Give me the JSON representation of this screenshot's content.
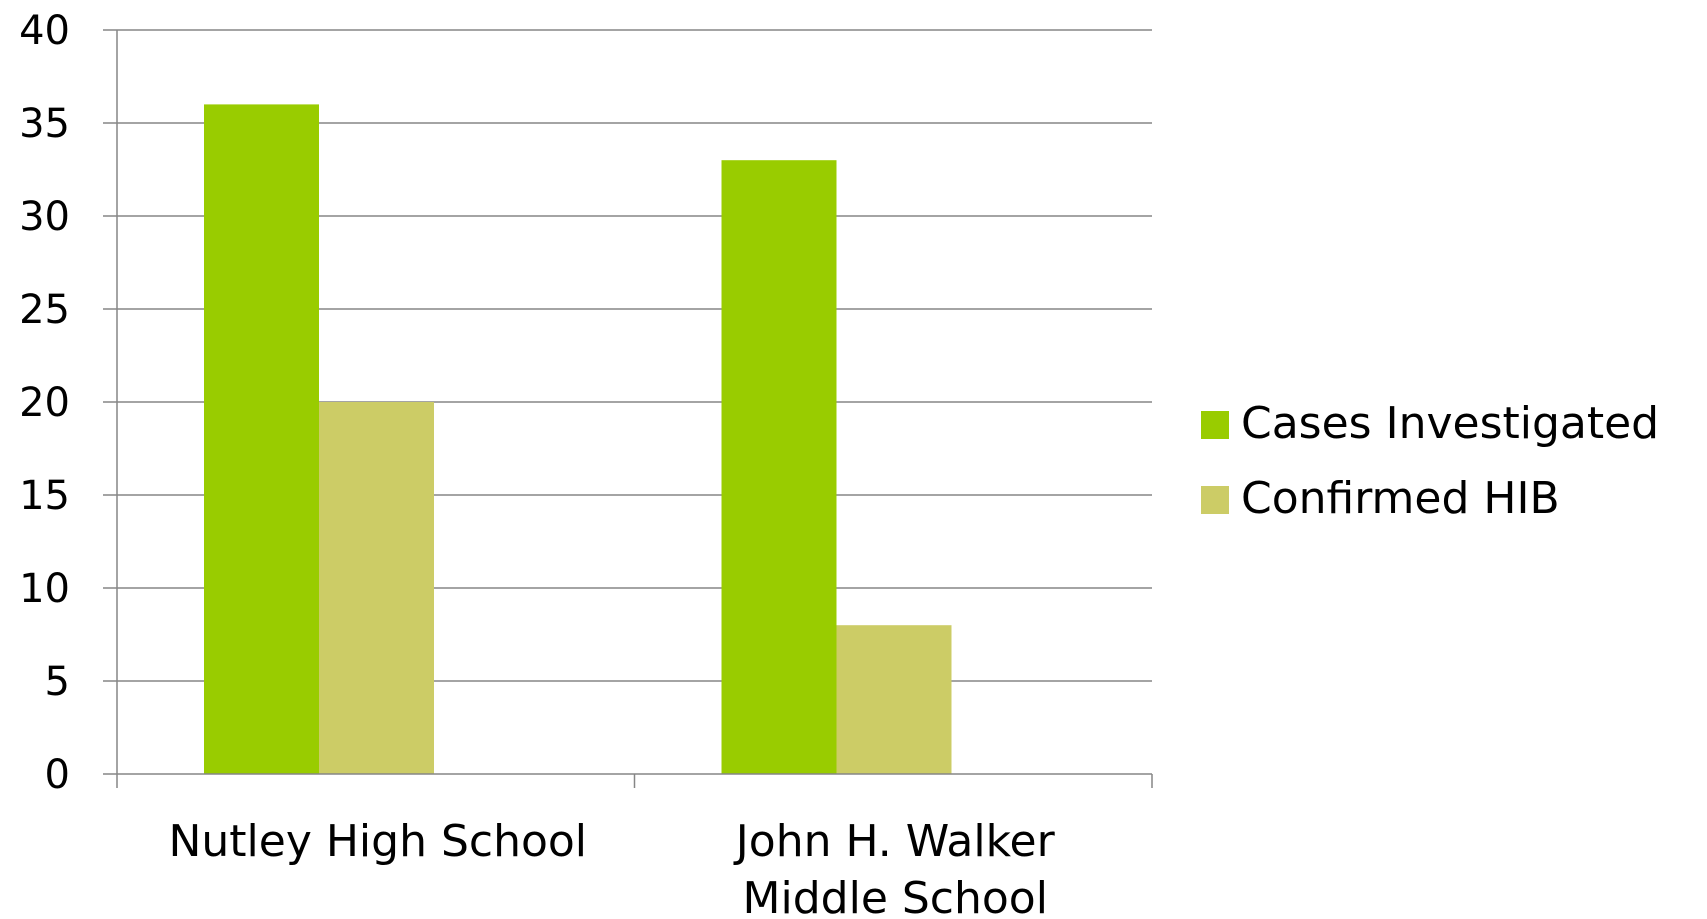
{
  "chart_data": {
    "type": "bar",
    "title": "",
    "xlabel": "",
    "ylabel": "",
    "categories": [
      [
        "Nutley High School"
      ],
      [
        "John H. Walker",
        "Middle School"
      ]
    ],
    "series": [
      {
        "name": "Cases Investigated",
        "values": [
          36,
          33
        ],
        "color": "#99CC00"
      },
      {
        "name": "Confirmed HIB",
        "values": [
          20,
          8
        ],
        "color": "#CCCC66"
      }
    ],
    "ylim": [
      0,
      40
    ],
    "yticks": [
      0,
      5,
      10,
      15,
      20,
      25,
      30,
      35,
      40
    ],
    "grid": true,
    "legend_position": "right",
    "colors": {
      "gridline": "#868686",
      "axis": "#868686"
    }
  }
}
